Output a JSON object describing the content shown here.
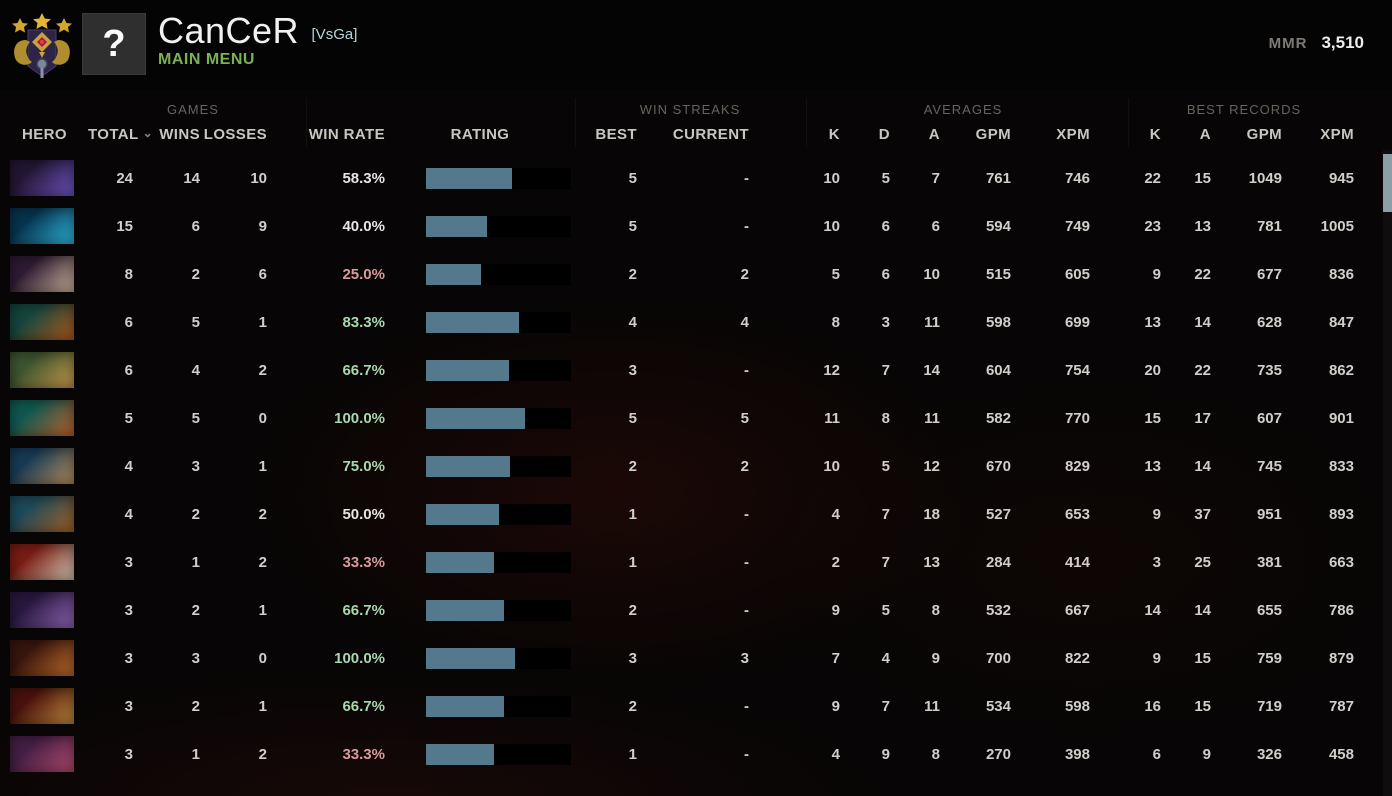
{
  "header": {
    "player_name": "CanCeR",
    "clan_tag": "[VsGa]",
    "subtitle": "MAIN MENU",
    "mmr_label": "MMR",
    "mmr_value": "3,510",
    "avatar_glyph": "?",
    "rank_icon": "rank-medal-three-stars"
  },
  "colors": {
    "win_green": "#a9d8ad",
    "win_neutral": "#e8e6e3",
    "win_red": "#d89a9c",
    "bar_fill": "#54788c",
    "menu_green": "#79b153",
    "tag_teal": "#b9d3dc",
    "scroll_thumb": "#8d9fa5"
  },
  "table": {
    "groups": [
      {
        "key": "games",
        "label": "GAMES"
      },
      {
        "key": "win_streaks",
        "label": "WIN STREAKS"
      },
      {
        "key": "averages",
        "label": "AVERAGES"
      },
      {
        "key": "best_records",
        "label": "BEST RECORDS"
      }
    ],
    "columns": [
      {
        "key": "hero",
        "label": "HERO"
      },
      {
        "key": "total",
        "label": "TOTAL",
        "sorted": true
      },
      {
        "key": "wins",
        "label": "WINS"
      },
      {
        "key": "losses",
        "label": "LOSSES"
      },
      {
        "key": "win_rate",
        "label": "WIN RATE"
      },
      {
        "key": "rating",
        "label": "RATING"
      },
      {
        "key": "streak_best",
        "label": "BEST"
      },
      {
        "key": "streak_current",
        "label": "CURRENT"
      },
      {
        "key": "avg_k",
        "label": "K"
      },
      {
        "key": "avg_d",
        "label": "D"
      },
      {
        "key": "avg_a",
        "label": "A"
      },
      {
        "key": "avg_gpm",
        "label": "GPM"
      },
      {
        "key": "avg_xpm",
        "label": "XPM"
      },
      {
        "key": "best_k",
        "label": "K"
      },
      {
        "key": "best_a",
        "label": "A"
      },
      {
        "key": "best_gpm",
        "label": "GPM"
      },
      {
        "key": "best_xpm",
        "label": "XPM"
      }
    ]
  },
  "rows": [
    {
      "icon_colors": [
        "#241634",
        "#6e55c4"
      ],
      "total": "24",
      "wins": "14",
      "losses": "10",
      "win_rate": "58.3%",
      "tone": "neutral",
      "rating_width": 86,
      "streak_best": "5",
      "streak_current": "-",
      "avg_k": "10",
      "avg_d": "5",
      "avg_a": "7",
      "avg_gpm": "761",
      "avg_xpm": "746",
      "best_k": "22",
      "best_a": "15",
      "best_gpm": "1049",
      "best_xpm": "945"
    },
    {
      "icon_colors": [
        "#06344f",
        "#2fb7dd"
      ],
      "total": "15",
      "wins": "6",
      "losses": "9",
      "win_rate": "40.0%",
      "tone": "neutral",
      "rating_width": 61,
      "streak_best": "5",
      "streak_current": "-",
      "avg_k": "10",
      "avg_d": "6",
      "avg_a": "6",
      "avg_gpm": "594",
      "avg_xpm": "749",
      "best_k": "23",
      "best_a": "13",
      "best_gpm": "781",
      "best_xpm": "1005"
    },
    {
      "icon_colors": [
        "#2e1b33",
        "#cdb49c"
      ],
      "total": "8",
      "wins": "2",
      "losses": "6",
      "win_rate": "25.0%",
      "tone": "red",
      "rating_width": 55,
      "streak_best": "2",
      "streak_current": "2",
      "avg_k": "5",
      "avg_d": "6",
      "avg_a": "10",
      "avg_gpm": "515",
      "avg_xpm": "605",
      "best_k": "9",
      "best_a": "22",
      "best_gpm": "677",
      "best_xpm": "836"
    },
    {
      "icon_colors": [
        "#14463f",
        "#b05a1a"
      ],
      "total": "6",
      "wins": "5",
      "losses": "1",
      "win_rate": "83.3%",
      "tone": "green",
      "rating_width": 93,
      "streak_best": "4",
      "streak_current": "4",
      "avg_k": "8",
      "avg_d": "3",
      "avg_a": "11",
      "avg_gpm": "598",
      "avg_xpm": "699",
      "best_k": "13",
      "best_a": "14",
      "best_gpm": "628",
      "best_xpm": "847"
    },
    {
      "icon_colors": [
        "#3d5530",
        "#c89a4a"
      ],
      "total": "6",
      "wins": "4",
      "losses": "2",
      "win_rate": "66.7%",
      "tone": "green",
      "rating_width": 83,
      "streak_best": "3",
      "streak_current": "-",
      "avg_k": "12",
      "avg_d": "7",
      "avg_a": "14",
      "avg_gpm": "604",
      "avg_xpm": "754",
      "best_k": "20",
      "best_a": "22",
      "best_gpm": "735",
      "best_xpm": "862"
    },
    {
      "icon_colors": [
        "#0f5a52",
        "#c0622a"
      ],
      "total": "5",
      "wins": "5",
      "losses": "0",
      "win_rate": "100.0%",
      "tone": "green",
      "rating_width": 99,
      "streak_best": "5",
      "streak_current": "5",
      "avg_k": "11",
      "avg_d": "8",
      "avg_a": "11",
      "avg_gpm": "582",
      "avg_xpm": "770",
      "best_k": "15",
      "best_a": "17",
      "best_gpm": "607",
      "best_xpm": "901"
    },
    {
      "icon_colors": [
        "#173b55",
        "#b98f5e"
      ],
      "total": "4",
      "wins": "3",
      "losses": "1",
      "win_rate": "75.0%",
      "tone": "green",
      "rating_width": 84,
      "streak_best": "2",
      "streak_current": "2",
      "avg_k": "10",
      "avg_d": "5",
      "avg_a": "12",
      "avg_gpm": "670",
      "avg_xpm": "829",
      "best_k": "13",
      "best_a": "14",
      "best_gpm": "745",
      "best_xpm": "833"
    },
    {
      "icon_colors": [
        "#1d4a5a",
        "#a66228"
      ],
      "total": "4",
      "wins": "2",
      "losses": "2",
      "win_rate": "50.0%",
      "tone": "neutral",
      "rating_width": 73,
      "streak_best": "1",
      "streak_current": "-",
      "avg_k": "4",
      "avg_d": "7",
      "avg_a": "18",
      "avg_gpm": "527",
      "avg_xpm": "653",
      "best_k": "9",
      "best_a": "37",
      "best_gpm": "951",
      "best_xpm": "893"
    },
    {
      "icon_colors": [
        "#7a1d14",
        "#d3c9b4"
      ],
      "total": "3",
      "wins": "1",
      "losses": "2",
      "win_rate": "33.3%",
      "tone": "red",
      "rating_width": 68,
      "streak_best": "1",
      "streak_current": "-",
      "avg_k": "2",
      "avg_d": "7",
      "avg_a": "13",
      "avg_gpm": "284",
      "avg_xpm": "414",
      "best_k": "3",
      "best_a": "25",
      "best_gpm": "381",
      "best_xpm": "663"
    },
    {
      "icon_colors": [
        "#2a1840",
        "#8f65b5"
      ],
      "total": "3",
      "wins": "2",
      "losses": "1",
      "win_rate": "66.7%",
      "tone": "green",
      "rating_width": 78,
      "streak_best": "2",
      "streak_current": "-",
      "avg_k": "9",
      "avg_d": "5",
      "avg_a": "8",
      "avg_gpm": "532",
      "avg_xpm": "667",
      "best_k": "14",
      "best_a": "14",
      "best_gpm": "655",
      "best_xpm": "786"
    },
    {
      "icon_colors": [
        "#38160d",
        "#c06c2a"
      ],
      "total": "3",
      "wins": "3",
      "losses": "0",
      "win_rate": "100.0%",
      "tone": "green",
      "rating_width": 89,
      "streak_best": "3",
      "streak_current": "3",
      "avg_k": "7",
      "avg_d": "4",
      "avg_a": "9",
      "avg_gpm": "700",
      "avg_xpm": "822",
      "best_k": "9",
      "best_a": "15",
      "best_gpm": "759",
      "best_xpm": "879"
    },
    {
      "icon_colors": [
        "#4a120c",
        "#c08a3a"
      ],
      "total": "3",
      "wins": "2",
      "losses": "1",
      "win_rate": "66.7%",
      "tone": "green",
      "rating_width": 78,
      "streak_best": "2",
      "streak_current": "-",
      "avg_k": "9",
      "avg_d": "7",
      "avg_a": "11",
      "avg_gpm": "534",
      "avg_xpm": "598",
      "best_k": "16",
      "best_a": "15",
      "best_gpm": "719",
      "best_xpm": "787"
    },
    {
      "icon_colors": [
        "#451f45",
        "#b34a6e"
      ],
      "total": "3",
      "wins": "1",
      "losses": "2",
      "win_rate": "33.3%",
      "tone": "red",
      "rating_width": 68,
      "streak_best": "1",
      "streak_current": "-",
      "avg_k": "4",
      "avg_d": "9",
      "avg_a": "8",
      "avg_gpm": "270",
      "avg_xpm": "398",
      "best_k": "6",
      "best_a": "9",
      "best_gpm": "326",
      "best_xpm": "458"
    }
  ]
}
